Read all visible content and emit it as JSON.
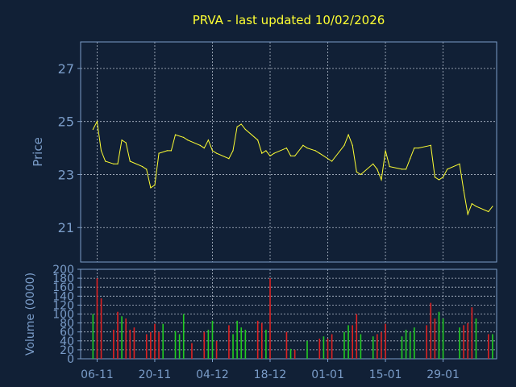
{
  "title": "PRVA - last updated 10/02/2026",
  "colors": {
    "background": "#112036",
    "frame": "#7a9cc8",
    "grid": "#cfd8e6",
    "price_line": "#ffff33",
    "volume_up": "#22cc22",
    "volume_down": "#dd2222",
    "title_text": "#ffff33",
    "axis_text": "#7a9cc8"
  },
  "chart_data": [
    {
      "type": "line",
      "ylabel": "Price",
      "ylim": [
        19.7,
        28.0
      ],
      "yticks": [
        21,
        23,
        25,
        27
      ],
      "grid": true,
      "x_tick_labels": [
        "06-11",
        "20-11",
        "04-12",
        "18-12",
        "01-01",
        "15-01",
        "29-01"
      ],
      "x_tick_dates": [
        "2025-11-06",
        "2025-11-20",
        "2025-12-04",
        "2025-12-18",
        "2026-01-01",
        "2026-01-15",
        "2026-01-29"
      ],
      "series": [
        {
          "values": [
            [
              "2025-11-05",
              24.7
            ],
            [
              "2025-11-06",
              25.0
            ],
            [
              "2025-11-07",
              23.9
            ],
            [
              "2025-11-08",
              23.5
            ],
            [
              "2025-11-10",
              23.4
            ],
            [
              "2025-11-11",
              23.4
            ],
            [
              "2025-11-12",
              24.3
            ],
            [
              "2025-11-13",
              24.2
            ],
            [
              "2025-11-14",
              23.5
            ],
            [
              "2025-11-17",
              23.3
            ],
            [
              "2025-11-18",
              23.2
            ],
            [
              "2025-11-19",
              22.5
            ],
            [
              "2025-11-20",
              22.6
            ],
            [
              "2025-11-21",
              23.8
            ],
            [
              "2025-11-23",
              23.9
            ],
            [
              "2025-11-24",
              23.9
            ],
            [
              "2025-11-25",
              24.5
            ],
            [
              "2025-11-27",
              24.4
            ],
            [
              "2025-11-28",
              24.3
            ],
            [
              "2025-12-01",
              24.1
            ],
            [
              "2025-12-02",
              24.0
            ],
            [
              "2025-12-03",
              24.3
            ],
            [
              "2025-12-04",
              23.9
            ],
            [
              "2025-12-05",
              23.8
            ],
            [
              "2025-12-08",
              23.6
            ],
            [
              "2025-12-09",
              23.9
            ],
            [
              "2025-12-10",
              24.8
            ],
            [
              "2025-12-11",
              24.9
            ],
            [
              "2025-12-12",
              24.7
            ],
            [
              "2025-12-15",
              24.3
            ],
            [
              "2025-12-16",
              23.8
            ],
            [
              "2025-12-17",
              23.9
            ],
            [
              "2025-12-18",
              23.7
            ],
            [
              "2025-12-19",
              23.8
            ],
            [
              "2025-12-22",
              24.0
            ],
            [
              "2025-12-23",
              23.7
            ],
            [
              "2025-12-24",
              23.7
            ],
            [
              "2025-12-26",
              24.1
            ],
            [
              "2025-12-27",
              24.0
            ],
            [
              "2025-12-29",
              23.9
            ],
            [
              "2025-12-30",
              23.8
            ],
            [
              "2026-01-02",
              23.5
            ],
            [
              "2026-01-05",
              24.1
            ],
            [
              "2026-01-06",
              24.5
            ],
            [
              "2026-01-07",
              24.1
            ],
            [
              "2026-01-08",
              23.1
            ],
            [
              "2026-01-09",
              23.0
            ],
            [
              "2026-01-12",
              23.4
            ],
            [
              "2026-01-13",
              23.2
            ],
            [
              "2026-01-14",
              22.8
            ],
            [
              "2026-01-15",
              23.9
            ],
            [
              "2026-01-16",
              23.3
            ],
            [
              "2026-01-19",
              23.2
            ],
            [
              "2026-01-20",
              23.2
            ],
            [
              "2026-01-21",
              23.6
            ],
            [
              "2026-01-22",
              24.0
            ],
            [
              "2026-01-23",
              24.0
            ],
            [
              "2026-01-26",
              24.1
            ],
            [
              "2026-01-27",
              22.9
            ],
            [
              "2026-01-28",
              22.8
            ],
            [
              "2026-01-29",
              22.9
            ],
            [
              "2026-01-30",
              23.2
            ],
            [
              "2026-02-02",
              23.4
            ],
            [
              "2026-02-03",
              22.4
            ],
            [
              "2026-02-04",
              21.5
            ],
            [
              "2026-02-05",
              21.9
            ],
            [
              "2026-02-06",
              21.8
            ],
            [
              "2026-02-09",
              21.6
            ],
            [
              "2026-02-10",
              21.8
            ]
          ]
        }
      ]
    },
    {
      "type": "bar",
      "ylabel": "Volume (0000)",
      "ylim": [
        0,
        200
      ],
      "yticks": [
        0,
        20,
        40,
        60,
        80,
        100,
        120,
        140,
        160,
        180,
        200
      ],
      "grid": true,
      "x_tick_labels": [
        "06-11",
        "20-11",
        "04-12",
        "18-12",
        "01-01",
        "15-01",
        "29-01"
      ],
      "x_tick_dates": [
        "2025-11-06",
        "2025-11-20",
        "2025-12-04",
        "2025-12-18",
        "2026-01-01",
        "2026-01-15",
        "2026-01-29"
      ],
      "bars": [
        [
          "2025-11-05",
          100,
          "up"
        ],
        [
          "2025-11-06",
          180,
          "down"
        ],
        [
          "2025-11-07",
          135,
          "down"
        ],
        [
          "2025-11-10",
          65,
          "down"
        ],
        [
          "2025-11-11",
          105,
          "down"
        ],
        [
          "2025-11-12",
          95,
          "up"
        ],
        [
          "2025-11-13",
          90,
          "down"
        ],
        [
          "2025-11-14",
          65,
          "down"
        ],
        [
          "2025-11-15",
          70,
          "down"
        ],
        [
          "2025-11-18",
          55,
          "down"
        ],
        [
          "2025-11-19",
          60,
          "down"
        ],
        [
          "2025-11-20",
          78,
          "down"
        ],
        [
          "2025-11-21",
          60,
          "down"
        ],
        [
          "2025-11-22",
          78,
          "up"
        ],
        [
          "2025-11-25",
          62,
          "up"
        ],
        [
          "2025-11-26",
          55,
          "up"
        ],
        [
          "2025-11-27",
          100,
          "up"
        ],
        [
          "2025-11-29",
          35,
          "down"
        ],
        [
          "2025-12-02",
          60,
          "down"
        ],
        [
          "2025-12-03",
          65,
          "up"
        ],
        [
          "2025-12-04",
          85,
          "up"
        ],
        [
          "2025-12-05",
          40,
          "down"
        ],
        [
          "2025-12-08",
          75,
          "down"
        ],
        [
          "2025-12-09",
          55,
          "up"
        ],
        [
          "2025-12-10",
          85,
          "up"
        ],
        [
          "2025-12-11",
          70,
          "up"
        ],
        [
          "2025-12-12",
          65,
          "up"
        ],
        [
          "2025-12-15",
          85,
          "down"
        ],
        [
          "2025-12-16",
          80,
          "down"
        ],
        [
          "2025-12-17",
          65,
          "up"
        ],
        [
          "2025-12-18",
          180,
          "down"
        ],
        [
          "2025-12-22",
          60,
          "down"
        ],
        [
          "2025-12-23",
          22,
          "up"
        ],
        [
          "2025-12-24",
          20,
          "down"
        ],
        [
          "2025-12-27",
          40,
          "up"
        ],
        [
          "2025-12-30",
          45,
          "down"
        ],
        [
          "2025-12-31",
          50,
          "up"
        ],
        [
          "2026-01-01",
          45,
          "down"
        ],
        [
          "2026-01-02",
          55,
          "down"
        ],
        [
          "2026-01-05",
          60,
          "up"
        ],
        [
          "2026-01-06",
          75,
          "up"
        ],
        [
          "2026-01-07",
          75,
          "down"
        ],
        [
          "2026-01-08",
          100,
          "down"
        ],
        [
          "2026-01-09",
          55,
          "up"
        ],
        [
          "2026-01-12",
          50,
          "up"
        ],
        [
          "2026-01-13",
          55,
          "down"
        ],
        [
          "2026-01-14",
          60,
          "down"
        ],
        [
          "2026-01-15",
          78,
          "down"
        ],
        [
          "2026-01-19",
          50,
          "up"
        ],
        [
          "2026-01-20",
          65,
          "up"
        ],
        [
          "2026-01-21",
          60,
          "up"
        ],
        [
          "2026-01-22",
          70,
          "up"
        ],
        [
          "2026-01-25",
          75,
          "down"
        ],
        [
          "2026-01-26",
          125,
          "down"
        ],
        [
          "2026-01-27",
          90,
          "down"
        ],
        [
          "2026-01-28",
          105,
          "up"
        ],
        [
          "2026-01-29",
          90,
          "up"
        ],
        [
          "2026-02-02",
          70,
          "up"
        ],
        [
          "2026-02-03",
          75,
          "down"
        ],
        [
          "2026-02-04",
          80,
          "down"
        ],
        [
          "2026-02-05",
          115,
          "down"
        ],
        [
          "2026-02-06",
          90,
          "up"
        ],
        [
          "2026-02-09",
          55,
          "down"
        ],
        [
          "2026-02-10",
          55,
          "up"
        ]
      ]
    }
  ]
}
